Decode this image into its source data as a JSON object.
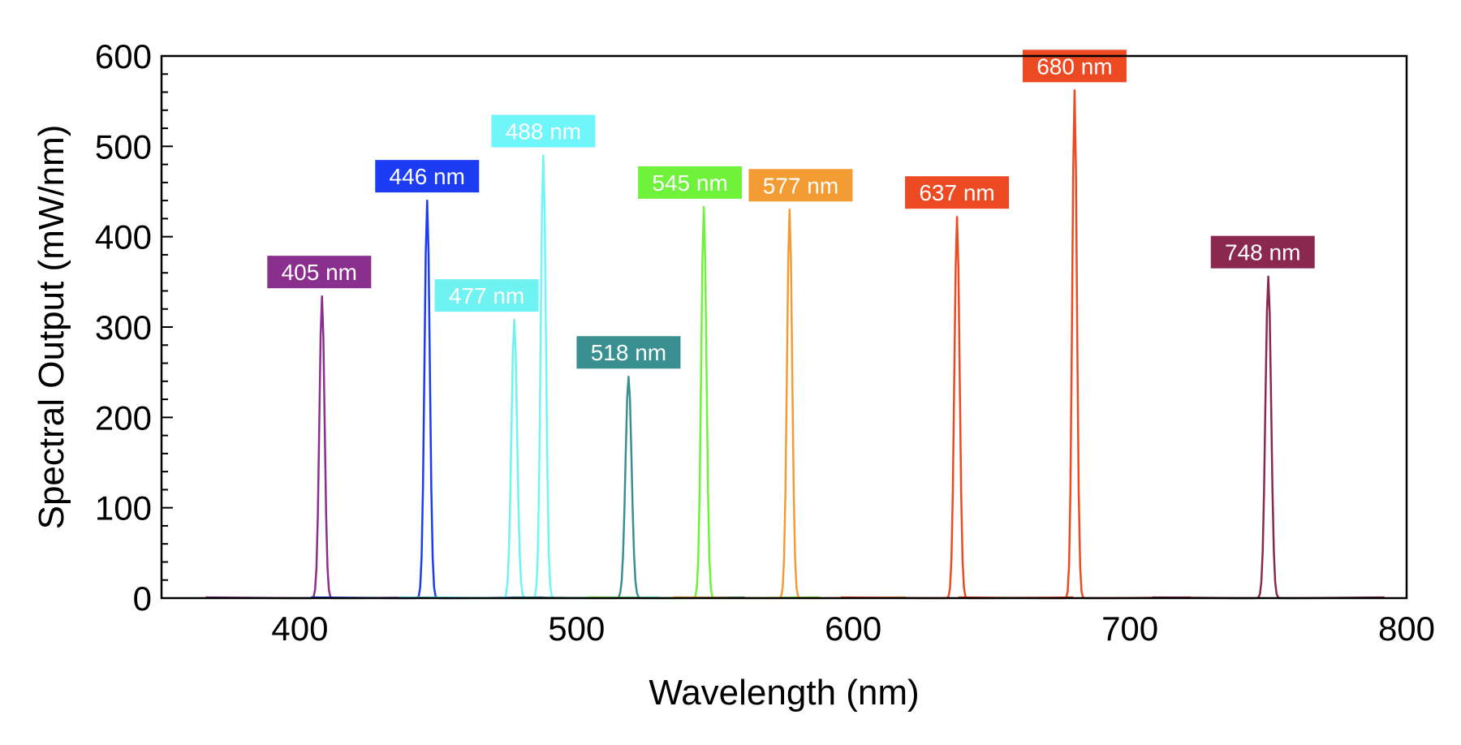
{
  "chart_data": {
    "type": "line",
    "title": "",
    "xlabel": "Wavelength (nm)",
    "ylabel": "Spectral Output (mW/nm)",
    "xlim": [
      350,
      800
    ],
    "ylim": [
      0,
      600
    ],
    "xticks": [
      400,
      500,
      600,
      700,
      800
    ],
    "yticks": [
      0,
      100,
      200,
      300,
      400,
      500,
      600
    ],
    "x_minor_step": 20,
    "y_minor_step": 20,
    "grid": false,
    "legend": "none",
    "series": [
      {
        "label": "405 nm",
        "peak_x": 408,
        "peak_y": 334,
        "fwhm_nm": 2.2,
        "color": "#8b2f8f"
      },
      {
        "label": "446 nm",
        "peak_x": 446,
        "peak_y": 440,
        "fwhm_nm": 2.2,
        "color": "#1b3cf2"
      },
      {
        "label": "477 nm",
        "peak_x": 477.5,
        "peak_y": 308,
        "fwhm_nm": 2.4,
        "color": "#6ef2f2"
      },
      {
        "label": "488 nm",
        "peak_x": 488,
        "peak_y": 490,
        "fwhm_nm": 2.2,
        "color": "#6ff6fb"
      },
      {
        "label": "518 nm",
        "peak_x": 518.8,
        "peak_y": 245,
        "fwhm_nm": 2.6,
        "color": "#3a9090"
      },
      {
        "label": "545 nm",
        "peak_x": 546,
        "peak_y": 433,
        "fwhm_nm": 2.2,
        "color": "#6ff23a"
      },
      {
        "label": "577 nm",
        "peak_x": 577,
        "peak_y": 430,
        "fwhm_nm": 2.2,
        "color": "#f29c33"
      },
      {
        "label": "637 nm",
        "peak_x": 637.5,
        "peak_y": 422,
        "fwhm_nm": 2.2,
        "color": "#ec4a22"
      },
      {
        "label": "680 nm",
        "peak_x": 680,
        "peak_y": 562,
        "fwhm_nm": 2.0,
        "color": "#ec4a22"
      },
      {
        "label": "748 nm",
        "peak_x": 750,
        "peak_y": 356,
        "fwhm_nm": 2.4,
        "color": "#8a2850"
      }
    ]
  }
}
